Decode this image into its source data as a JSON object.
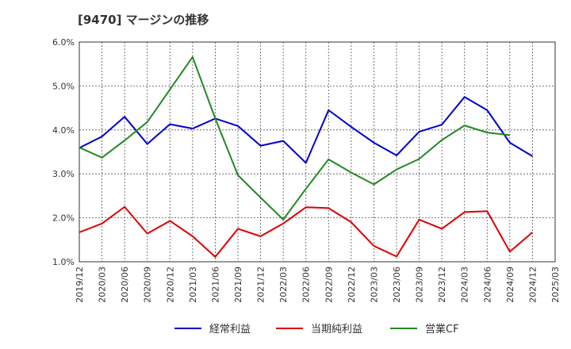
{
  "chart_data": {
    "type": "line",
    "title": "[9470]  マージンの推移",
    "xlabel": "",
    "ylabel": "",
    "ylim": [
      1.0,
      6.0
    ],
    "yticks": [
      "1.0%",
      "2.0%",
      "3.0%",
      "4.0%",
      "5.0%",
      "6.0%"
    ],
    "grid": true,
    "legend_position": "bottom",
    "categories": [
      "2019/12",
      "2020/03",
      "2020/06",
      "2020/09",
      "2020/12",
      "2021/03",
      "2021/06",
      "2021/09",
      "2021/12",
      "2022/03",
      "2022/06",
      "2022/09",
      "2022/12",
      "2023/03",
      "2023/06",
      "2023/09",
      "2023/12",
      "2024/03",
      "2024/06",
      "2024/09",
      "2024/12",
      "2025/03"
    ],
    "series": [
      {
        "name": "経常利益",
        "color": "#0000cc",
        "values": [
          3.59,
          3.85,
          4.3,
          3.68,
          4.13,
          4.03,
          4.26,
          4.09,
          3.64,
          3.75,
          3.25,
          4.45,
          4.07,
          3.71,
          3.42,
          3.96,
          4.12,
          4.75,
          4.45,
          3.71,
          3.4,
          null
        ]
      },
      {
        "name": "当期純利益",
        "color": "#dd0000",
        "values": [
          1.67,
          1.87,
          2.25,
          1.64,
          1.93,
          1.58,
          1.11,
          1.75,
          1.58,
          1.87,
          2.24,
          2.22,
          1.9,
          1.36,
          1.12,
          1.96,
          1.75,
          2.13,
          2.15,
          1.23,
          1.67,
          null
        ]
      },
      {
        "name": "営業CF",
        "color": "#228822",
        "values": [
          3.6,
          3.37,
          3.76,
          4.18,
          4.92,
          5.66,
          4.26,
          2.97,
          2.46,
          1.96,
          2.66,
          3.33,
          3.03,
          2.76,
          3.1,
          3.34,
          3.77,
          4.1,
          3.94,
          3.88,
          null,
          null
        ]
      }
    ]
  }
}
